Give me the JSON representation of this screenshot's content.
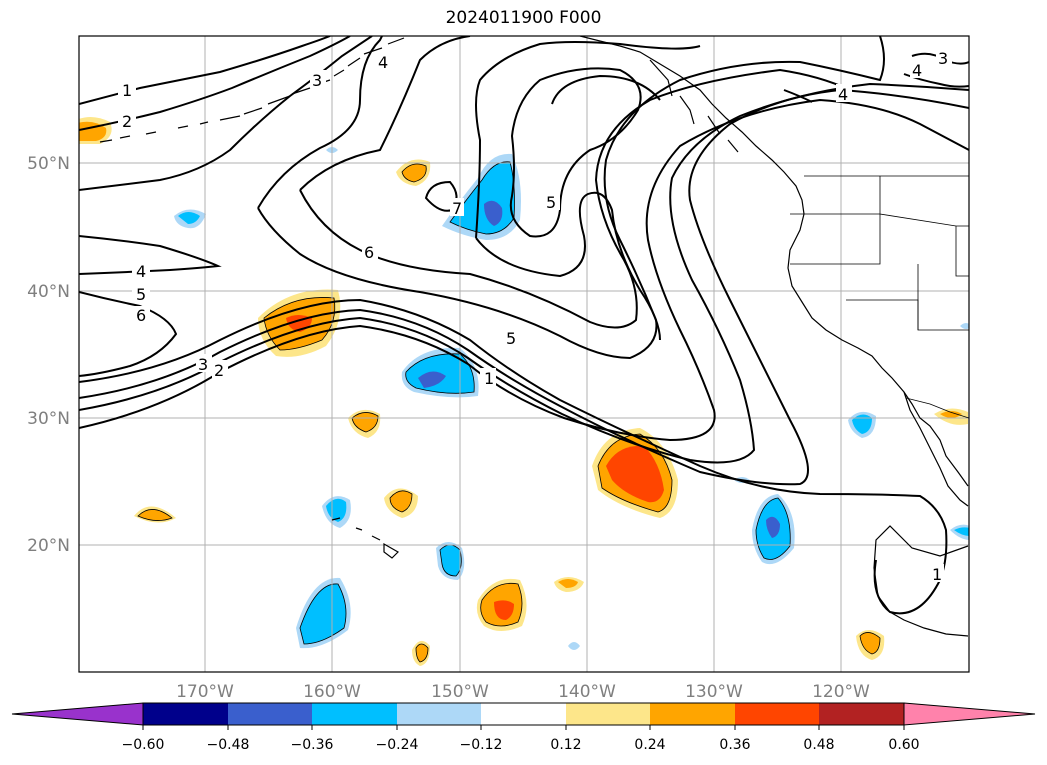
{
  "title": "2024011900 F000",
  "map": {
    "lon_range": [
      -180,
      -110
    ],
    "lat_range": [
      10,
      60
    ],
    "grid": true,
    "lon_ticks": [
      {
        "value": -170,
        "label": "170°W"
      },
      {
        "value": -160,
        "label": "160°W"
      },
      {
        "value": -150,
        "label": "150°W"
      },
      {
        "value": -140,
        "label": "140°W"
      },
      {
        "value": -130,
        "label": "130°W"
      },
      {
        "value": -120,
        "label": "120°W"
      }
    ],
    "lat_ticks": [
      {
        "value": 20,
        "label": "20°N"
      },
      {
        "value": 30,
        "label": "30°N"
      },
      {
        "value": 40,
        "label": "40°N"
      },
      {
        "value": 50,
        "label": "50°N"
      }
    ],
    "contour_labels": [
      "1",
      "2",
      "3",
      "4",
      "5",
      "6",
      "7"
    ]
  },
  "colorbar": {
    "ticks": [
      "−0.60",
      "−0.48",
      "−0.36",
      "−0.24",
      "−0.12",
      "0.12",
      "0.24",
      "0.36",
      "0.48",
      "0.60"
    ],
    "colors": [
      "#9932cc",
      "#00008b",
      "#3a5fcd",
      "#00bfff",
      "#add8f7",
      "#ffffff",
      "#fde68a",
      "#ffa500",
      "#ff4500",
      "#b22222",
      "#ff82ab"
    ],
    "extend": "both"
  }
}
